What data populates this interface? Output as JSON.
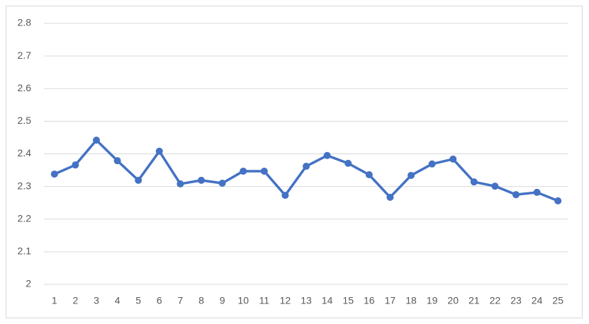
{
  "chart_data": {
    "type": "line",
    "categories": [
      1,
      2,
      3,
      4,
      5,
      6,
      7,
      8,
      9,
      10,
      11,
      12,
      13,
      14,
      15,
      16,
      17,
      18,
      19,
      20,
      21,
      22,
      23,
      24,
      25
    ],
    "values": [
      2.338,
      2.366,
      2.442,
      2.379,
      2.319,
      2.408,
      2.308,
      2.319,
      2.31,
      2.347,
      2.347,
      2.273,
      2.362,
      2.395,
      2.371,
      2.336,
      2.267,
      2.334,
      2.369,
      2.384,
      2.314,
      2.301,
      2.275,
      2.282,
      2.256
    ],
    "color": "#4472c4",
    "ylim": [
      2,
      2.8
    ],
    "yticks": [
      2,
      2.1,
      2.2,
      2.3,
      2.4,
      2.5,
      2.6,
      2.7,
      2.8
    ],
    "grid": true
  }
}
